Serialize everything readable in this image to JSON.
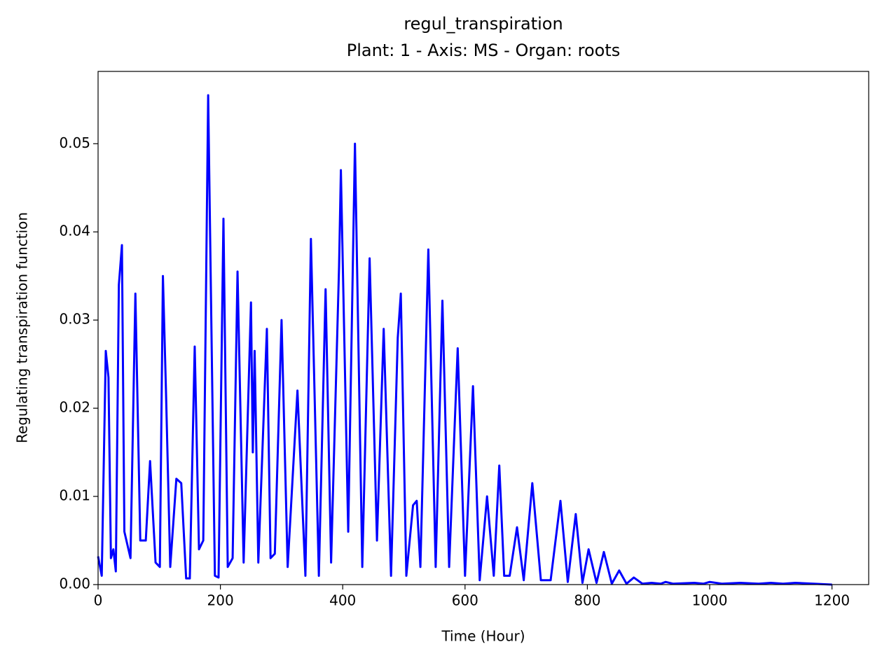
{
  "chart_data": {
    "type": "line",
    "title": "regul_transpiration",
    "subtitle": "Plant: 1 - Axis: MS - Organ: roots",
    "x_label": "Time (Hour)",
    "y_label": "Regulating transpiration function",
    "xlim": [
      0,
      1260
    ],
    "ylim": [
      0,
      0.0582
    ],
    "xticks": [
      0,
      200,
      400,
      600,
      800,
      1000,
      1200
    ],
    "yticks": [
      {
        "value": 0,
        "label": "0.00"
      },
      {
        "value": 0.01,
        "label": "0.01"
      },
      {
        "value": 0.02,
        "label": "0.02"
      },
      {
        "value": 0.03,
        "label": "0.03"
      },
      {
        "value": 0.04,
        "label": "0.04"
      },
      {
        "value": 0.05,
        "label": "0.05"
      }
    ],
    "x": [
      0,
      6,
      12.6,
      17,
      21,
      25,
      29,
      34,
      39,
      43,
      53,
      61,
      69,
      78,
      85,
      94,
      101,
      106,
      111,
      118,
      128,
      136,
      144,
      150,
      158,
      165,
      172,
      180,
      191,
      197,
      205,
      212,
      220,
      228,
      238,
      250,
      253,
      256,
      262,
      276,
      282,
      289,
      300,
      310,
      326,
      339,
      348,
      361,
      372,
      381,
      394,
      397,
      409,
      420,
      432,
      444,
      456,
      467,
      479,
      490,
      495,
      504,
      515,
      521,
      527,
      540,
      552,
      563,
      574,
      588,
      600,
      613,
      624,
      636,
      647,
      656,
      664,
      673,
      685,
      696,
      710,
      724,
      740,
      756,
      768,
      781,
      792,
      802,
      815,
      827,
      840,
      852,
      864,
      876,
      890,
      905,
      920,
      928,
      940,
      975,
      990,
      1000,
      1020,
      1050,
      1080,
      1100,
      1120,
      1140,
      1170,
      1200
    ],
    "series": [
      {
        "name": "regul_transpiration",
        "color": "#0000ff",
        "values": [
          0.0032,
          0.001,
          0.0265,
          0.0235,
          0.003,
          0.004,
          0.0015,
          0.034,
          0.0385,
          0.006,
          0.003,
          0.033,
          0.005,
          0.005,
          0.014,
          0.0025,
          0.002,
          0.035,
          0.022,
          0.002,
          0.012,
          0.0115,
          0.0007,
          0.0007,
          0.027,
          0.004,
          0.005,
          0.0555,
          0.001,
          0.0008,
          0.0415,
          0.002,
          0.003,
          0.0355,
          0.0025,
          0.032,
          0.015,
          0.0265,
          0.0025,
          0.029,
          0.003,
          0.0035,
          0.03,
          0.002,
          0.022,
          0.001,
          0.0392,
          0.001,
          0.0335,
          0.0025,
          0.036,
          0.047,
          0.006,
          0.05,
          0.002,
          0.037,
          0.005,
          0.029,
          0.001,
          0.028,
          0.033,
          0.001,
          0.009,
          0.0095,
          0.002,
          0.038,
          0.002,
          0.0322,
          0.002,
          0.0268,
          0.001,
          0.0225,
          0.0005,
          0.01,
          0.001,
          0.0135,
          0.001,
          0.001,
          0.0065,
          0.0005,
          0.0115,
          0.0005,
          0.0005,
          0.0095,
          0.0003,
          0.008,
          0.0002,
          0.004,
          0.0002,
          0.0037,
          0.0001,
          0.0016,
          0.0001,
          0.0008,
          0.0001,
          0.0002,
          0.0001,
          0.0003,
          0.0001,
          0.0002,
          0.0001,
          0.0003,
          0.0001,
          0.0002,
          0.0001,
          0.0002,
          0.0001,
          0.0002,
          0.0001,
          0
        ]
      }
    ]
  }
}
